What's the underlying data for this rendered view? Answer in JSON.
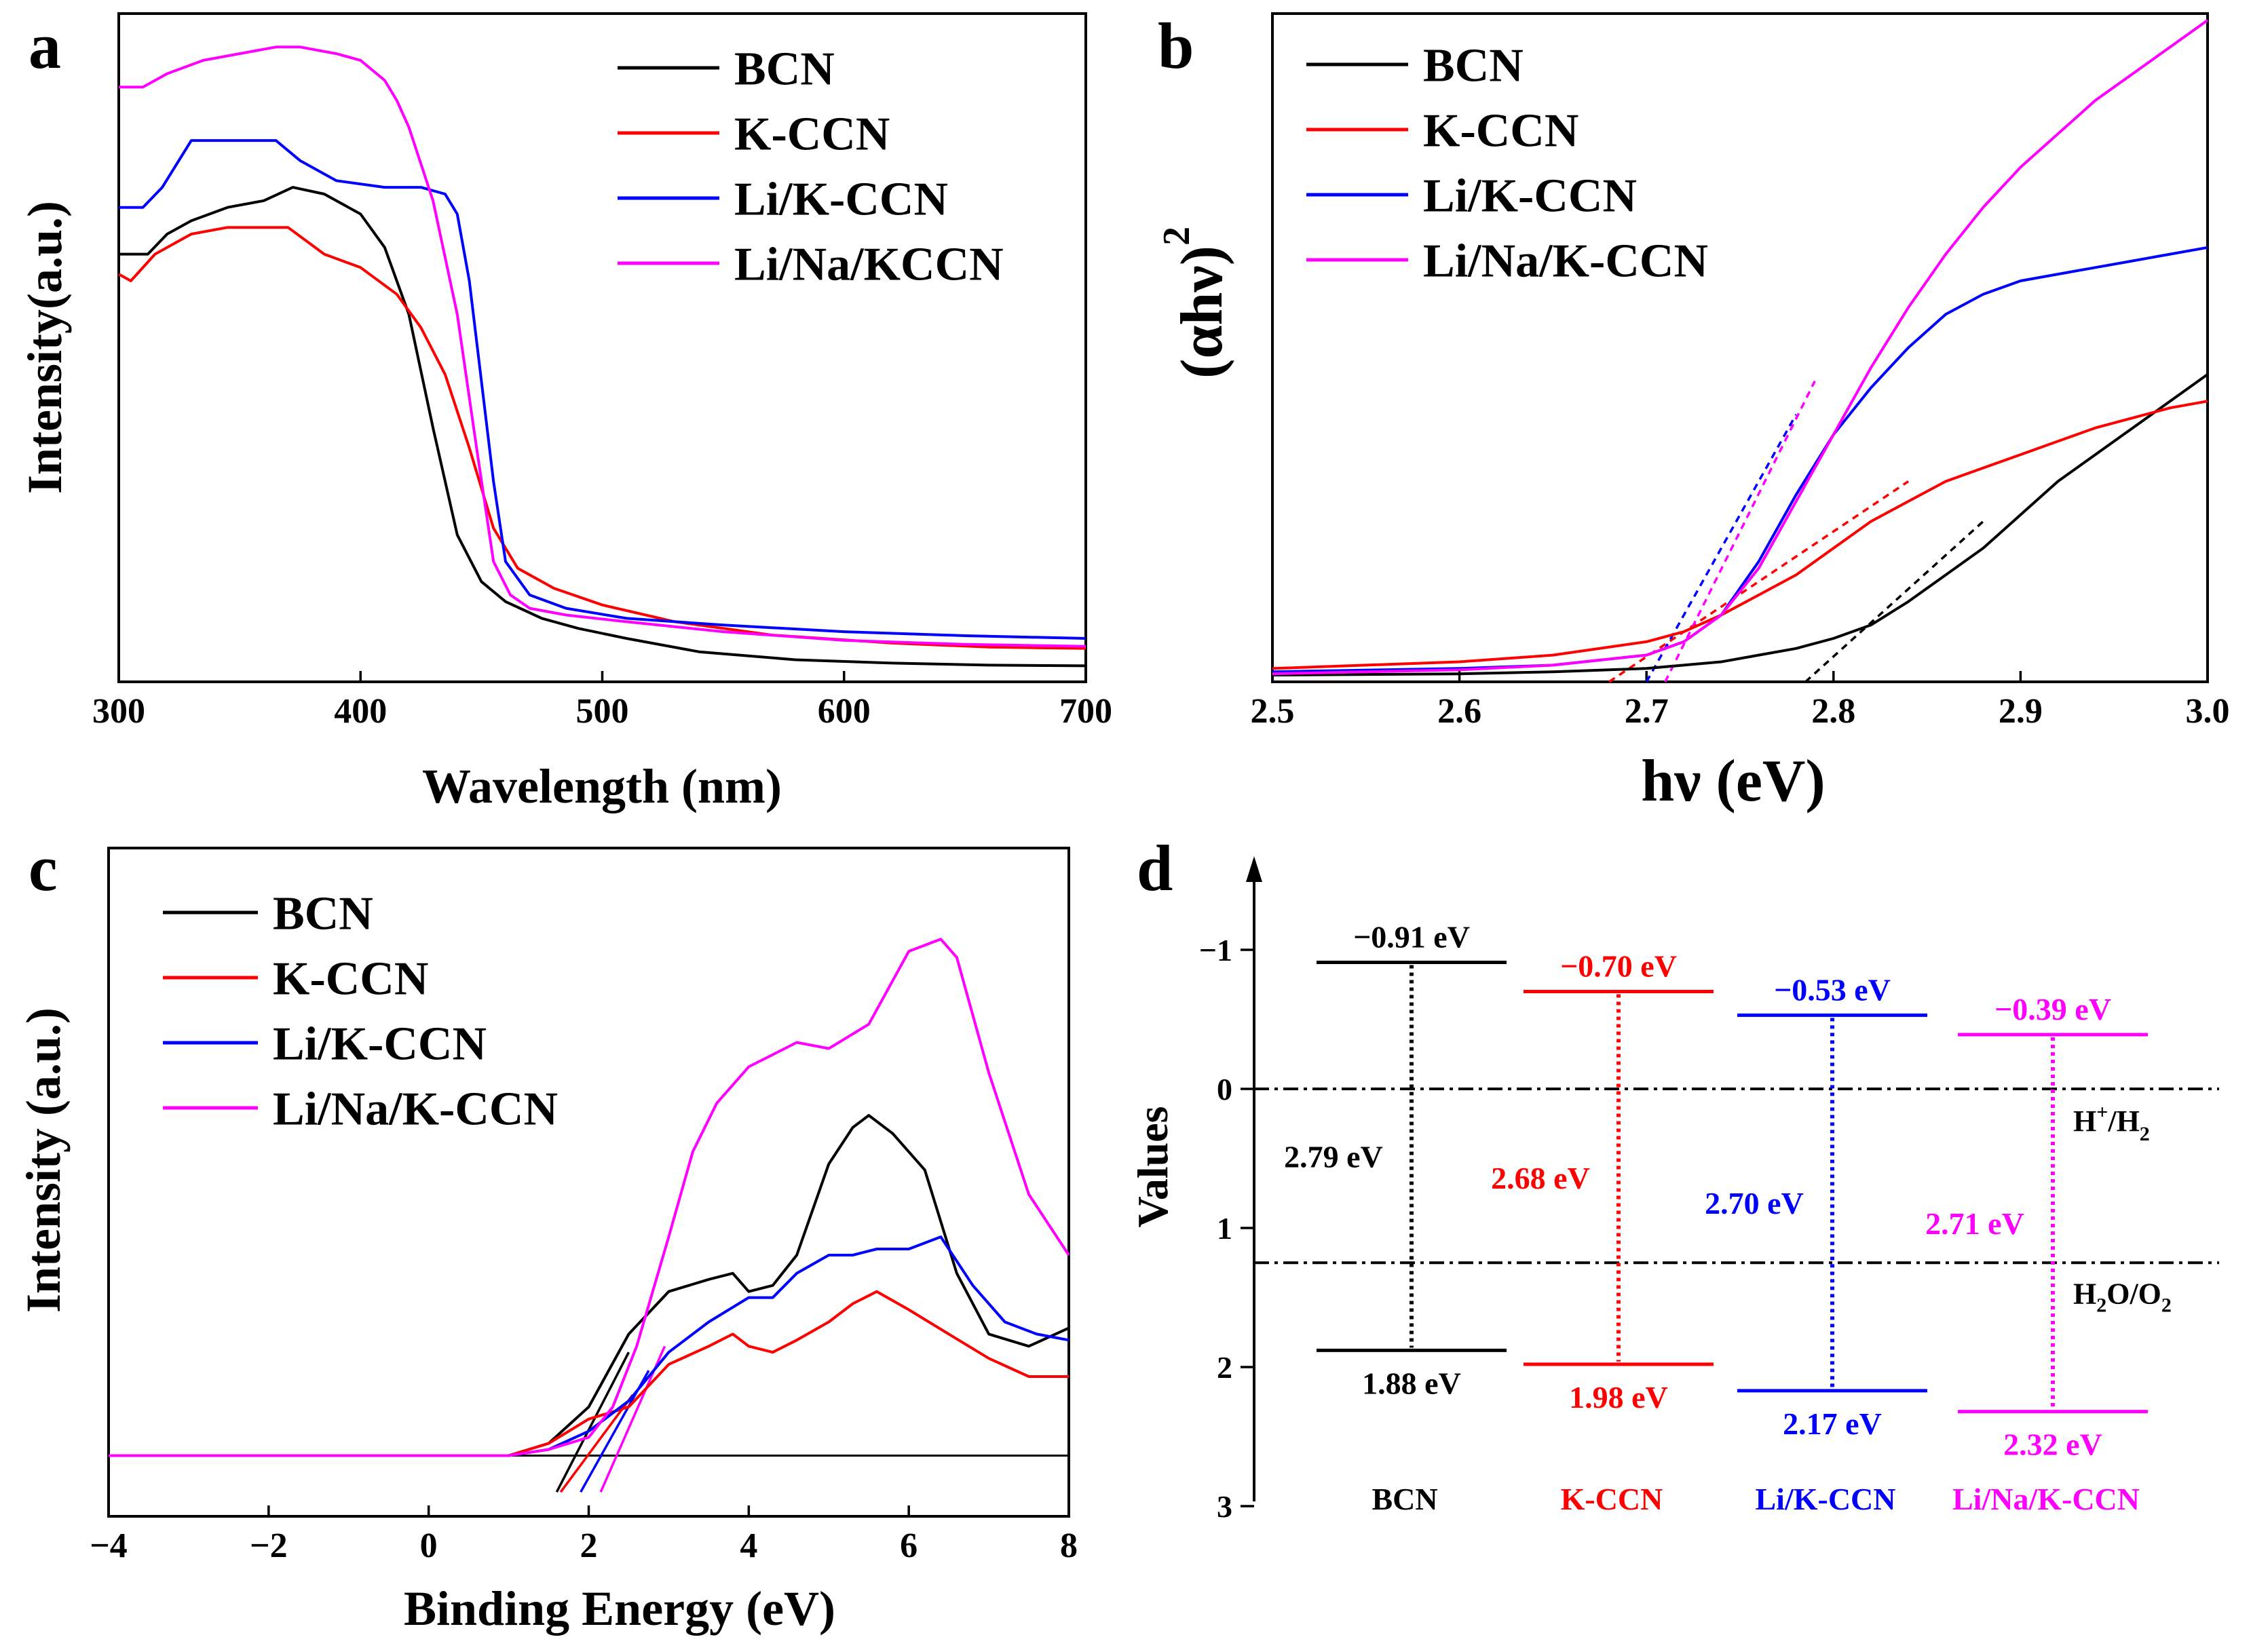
{
  "panels": {
    "a": {
      "letter": "a"
    },
    "b": {
      "letter": "b"
    },
    "c": {
      "letter": "c"
    },
    "d": {
      "letter": "d"
    }
  },
  "chart_data": [
    {
      "id": "a",
      "type": "line",
      "xlabel": "Wavelength (nm)",
      "ylabel": "Intensity(a.u.)",
      "xlim": [
        300,
        700
      ],
      "ylim": [
        0,
        1
      ],
      "xticks": [
        "300",
        "400",
        "500",
        "600",
        "700"
      ],
      "legend": [
        "BCN",
        "K-CCN",
        "Li/K-CCN",
        "Li/Na/KCCN"
      ],
      "colors": [
        "#000000",
        "#ff0000",
        "#0000ff",
        "#ff00ff"
      ],
      "series": [
        {
          "name": "BCN",
          "x": [
            300,
            312,
            320,
            330,
            345,
            360,
            372,
            385,
            400,
            410,
            420,
            430,
            440,
            450,
            460,
            475,
            490,
            510,
            540,
            580,
            620,
            660,
            700
          ],
          "y": [
            0.64,
            0.64,
            0.67,
            0.69,
            0.71,
            0.72,
            0.74,
            0.73,
            0.7,
            0.65,
            0.55,
            0.38,
            0.22,
            0.15,
            0.12,
            0.095,
            0.08,
            0.065,
            0.045,
            0.033,
            0.028,
            0.025,
            0.024
          ]
        },
        {
          "name": "K-CCN",
          "x": [
            300,
            305,
            315,
            330,
            345,
            360,
            370,
            385,
            400,
            415,
            425,
            435,
            445,
            455,
            465,
            480,
            500,
            530,
            570,
            620,
            660,
            700
          ],
          "y": [
            0.61,
            0.6,
            0.64,
            0.67,
            0.68,
            0.68,
            0.68,
            0.64,
            0.62,
            0.58,
            0.53,
            0.46,
            0.35,
            0.23,
            0.17,
            0.14,
            0.115,
            0.09,
            0.07,
            0.058,
            0.052,
            0.05
          ]
        },
        {
          "name": "Li/K-CCN",
          "x": [
            300,
            310,
            318,
            330,
            345,
            365,
            375,
            390,
            410,
            425,
            435,
            440,
            445,
            450,
            455,
            460,
            470,
            485,
            510,
            550,
            600,
            650,
            700
          ],
          "y": [
            0.71,
            0.71,
            0.74,
            0.81,
            0.81,
            0.81,
            0.78,
            0.75,
            0.74,
            0.74,
            0.73,
            0.7,
            0.6,
            0.45,
            0.3,
            0.18,
            0.13,
            0.11,
            0.095,
            0.085,
            0.075,
            0.069,
            0.065
          ]
        },
        {
          "name": "Li/Na/KCCN",
          "x": [
            300,
            310,
            320,
            335,
            350,
            365,
            375,
            390,
            400,
            410,
            415,
            420,
            430,
            440,
            448,
            455,
            462,
            470,
            485,
            510,
            550,
            600,
            650,
            700
          ],
          "y": [
            0.89,
            0.89,
            0.91,
            0.93,
            0.94,
            0.95,
            0.95,
            0.94,
            0.93,
            0.9,
            0.87,
            0.83,
            0.72,
            0.55,
            0.35,
            0.18,
            0.13,
            0.11,
            0.1,
            0.09,
            0.075,
            0.062,
            0.056,
            0.053
          ]
        }
      ]
    },
    {
      "id": "b",
      "type": "line",
      "xlabel": "hν (eV)",
      "ylabel": "(αhν)",
      "ylabel_sup": "2",
      "xlim": [
        2.5,
        3.0
      ],
      "ylim": [
        0,
        1
      ],
      "xticks": [
        "2.5",
        "2.6",
        "2.7",
        "2.8",
        "2.9",
        "3.0"
      ],
      "legend": [
        "BCN",
        "K-CCN",
        "Li/K-CCN",
        "Li/Na/K-CCN"
      ],
      "colors": [
        "#000000",
        "#ff0000",
        "#0000ff",
        "#ff00ff"
      ],
      "series": [
        {
          "name": "BCN",
          "x": [
            2.5,
            2.6,
            2.65,
            2.7,
            2.72,
            2.74,
            2.76,
            2.78,
            2.8,
            2.82,
            2.84,
            2.86,
            2.88,
            2.9,
            2.92,
            2.94,
            2.96,
            2.98,
            3.0
          ],
          "y": [
            0.01,
            0.012,
            0.015,
            0.02,
            0.025,
            0.03,
            0.04,
            0.05,
            0.065,
            0.085,
            0.12,
            0.16,
            0.2,
            0.25,
            0.3,
            0.34,
            0.38,
            0.42,
            0.46
          ]
        },
        {
          "name": "K-CCN",
          "x": [
            2.5,
            2.6,
            2.65,
            2.7,
            2.72,
            2.74,
            2.76,
            2.78,
            2.8,
            2.82,
            2.84,
            2.86,
            2.88,
            2.9,
            2.92,
            2.94,
            2.96,
            2.98,
            3.0
          ],
          "y": [
            0.02,
            0.03,
            0.04,
            0.06,
            0.075,
            0.1,
            0.13,
            0.16,
            0.2,
            0.24,
            0.27,
            0.3,
            0.32,
            0.34,
            0.36,
            0.38,
            0.395,
            0.41,
            0.42
          ]
        },
        {
          "name": "Li/K-CCN",
          "x": [
            2.5,
            2.6,
            2.65,
            2.7,
            2.72,
            2.74,
            2.76,
            2.78,
            2.8,
            2.82,
            2.84,
            2.86,
            2.88,
            2.9,
            2.92,
            2.94,
            2.96,
            2.98,
            3.0
          ],
          "y": [
            0.015,
            0.02,
            0.025,
            0.04,
            0.06,
            0.1,
            0.18,
            0.28,
            0.37,
            0.44,
            0.5,
            0.55,
            0.58,
            0.6,
            0.61,
            0.62,
            0.63,
            0.64,
            0.65
          ]
        },
        {
          "name": "Li/Na/K-CCN",
          "x": [
            2.5,
            2.6,
            2.65,
            2.7,
            2.72,
            2.74,
            2.76,
            2.78,
            2.8,
            2.82,
            2.84,
            2.86,
            2.88,
            2.9,
            2.92,
            2.94,
            2.96,
            2.98,
            3.0
          ],
          "y": [
            0.012,
            0.018,
            0.025,
            0.04,
            0.06,
            0.1,
            0.17,
            0.27,
            0.37,
            0.47,
            0.56,
            0.64,
            0.71,
            0.77,
            0.82,
            0.87,
            0.91,
            0.95,
            0.99
          ]
        }
      ],
      "tangents": [
        {
          "name": "BCN",
          "x": [
            2.785,
            2.88
          ],
          "y": [
            0.0,
            0.24
          ]
        },
        {
          "name": "K-CCN",
          "x": [
            2.68,
            2.84
          ],
          "y": [
            0.0,
            0.3
          ]
        },
        {
          "name": "Li/K-CCN",
          "x": [
            2.7,
            2.78
          ],
          "y": [
            0.0,
            0.4
          ]
        },
        {
          "name": "Li/Na/K-CCN",
          "x": [
            2.71,
            2.79
          ],
          "y": [
            0.0,
            0.45
          ]
        }
      ]
    },
    {
      "id": "c",
      "type": "line",
      "xlabel": "Binding Energy (eV)",
      "ylabel": "Intensity (a.u.)",
      "xlim": [
        -4,
        8
      ],
      "ylim": [
        -0.1,
        1
      ],
      "xticks": [
        "−4",
        "−2",
        "0",
        "2",
        "4",
        "6",
        "8"
      ],
      "legend": [
        "BCN",
        "K-CCN",
        "Li/K-CCN",
        "Li/Na/K-CCN"
      ],
      "colors": [
        "#000000",
        "#ff0000",
        "#0000ff",
        "#ff00ff"
      ],
      "baseline": 0.0,
      "series": [
        {
          "name": "BCN",
          "x": [
            -4,
            -2,
            0,
            1,
            1.5,
            2,
            2.5,
            3,
            3.5,
            3.8,
            4,
            4.3,
            4.6,
            5,
            5.3,
            5.5,
            5.8,
            6.2,
            6.6,
            7,
            7.5,
            8
          ],
          "y": [
            0,
            0,
            0,
            0,
            0.02,
            0.08,
            0.2,
            0.27,
            0.29,
            0.3,
            0.27,
            0.28,
            0.33,
            0.48,
            0.54,
            0.56,
            0.53,
            0.47,
            0.3,
            0.2,
            0.18,
            0.21
          ]
        },
        {
          "name": "K-CCN",
          "x": [
            -4,
            -2,
            0,
            1,
            1.5,
            2,
            2.5,
            3,
            3.5,
            3.8,
            4,
            4.3,
            4.6,
            5,
            5.3,
            5.6,
            6,
            6.5,
            7,
            7.5,
            8
          ],
          "y": [
            0,
            0,
            0,
            0,
            0.02,
            0.06,
            0.08,
            0.15,
            0.18,
            0.2,
            0.18,
            0.17,
            0.19,
            0.22,
            0.25,
            0.27,
            0.24,
            0.2,
            0.16,
            0.13,
            0.13
          ]
        },
        {
          "name": "Li/K-CCN",
          "x": [
            -4,
            -2,
            0,
            1,
            1.5,
            2,
            2.5,
            3,
            3.5,
            4,
            4.3,
            4.6,
            5,
            5.3,
            5.6,
            6,
            6.4,
            6.8,
            7.2,
            7.6,
            8
          ],
          "y": [
            0,
            0,
            0,
            0,
            0.01,
            0.04,
            0.09,
            0.17,
            0.22,
            0.26,
            0.26,
            0.3,
            0.33,
            0.33,
            0.34,
            0.34,
            0.36,
            0.28,
            0.22,
            0.2,
            0.19
          ]
        },
        {
          "name": "Li/Na/K-CCN",
          "x": [
            -4,
            -2,
            0,
            1,
            1.5,
            2,
            2.3,
            2.6,
            3,
            3.3,
            3.6,
            4,
            4.3,
            4.6,
            5,
            5.5,
            6,
            6.4,
            6.6,
            7,
            7.5,
            8
          ],
          "y": [
            0,
            0,
            0,
            0,
            0.01,
            0.03,
            0.08,
            0.18,
            0.36,
            0.5,
            0.58,
            0.64,
            0.66,
            0.68,
            0.67,
            0.71,
            0.83,
            0.85,
            0.82,
            0.63,
            0.43,
            0.33
          ]
        }
      ],
      "tangents": [
        {
          "name": "BCN",
          "x": [
            1.6,
            2.5
          ],
          "y": [
            -0.06,
            0.17
          ]
        },
        {
          "name": "K-CCN",
          "x": [
            1.65,
            2.55
          ],
          "y": [
            -0.06,
            0.1
          ]
        },
        {
          "name": "Li/K-CCN",
          "x": [
            1.9,
            2.75
          ],
          "y": [
            -0.06,
            0.14
          ]
        },
        {
          "name": "Li/Na/K-CCN",
          "x": [
            2.15,
            2.95
          ],
          "y": [
            -0.06,
            0.18
          ]
        }
      ]
    },
    {
      "id": "d",
      "type": "diagram",
      "ylabel": "Values",
      "ylim": [
        -1.5,
        3
      ],
      "yticks": [
        "−1",
        "0",
        "1",
        "2",
        "3"
      ],
      "reference_levels": [
        {
          "name": "H+/H2",
          "value": 0,
          "label": "H",
          "sup": "+",
          "mid": "/H",
          "sub": "2"
        },
        {
          "name": "H2O/O2",
          "value": 1.25,
          "label": "H",
          "sub1": "2",
          "mid": "O/O",
          "sub": "2"
        }
      ],
      "materials": [
        {
          "name": "BCN",
          "color": "#000000",
          "cb": -0.91,
          "vb": 1.88,
          "cb_label": "−0.91 eV",
          "vb_label": "1.88 eV",
          "gap_label": "2.79 eV"
        },
        {
          "name": "K-CCN",
          "color": "#ff0000",
          "cb": -0.7,
          "vb": 1.98,
          "cb_label": "−0.70 eV",
          "vb_label": "1.98 eV",
          "gap_label": "2.68 eV"
        },
        {
          "name": "Li/K-CCN",
          "color": "#0000ff",
          "cb": -0.53,
          "vb": 2.17,
          "cb_label": "−0.53 eV",
          "vb_label": "2.17 eV",
          "gap_label": "2.70 eV"
        },
        {
          "name": "Li/Na/K-CCN",
          "color": "#ff00ff",
          "cb": -0.39,
          "vb": 2.32,
          "cb_label": "−0.39 eV",
          "vb_label": "2.32 eV",
          "gap_label": "2.71 eV"
        }
      ]
    }
  ]
}
